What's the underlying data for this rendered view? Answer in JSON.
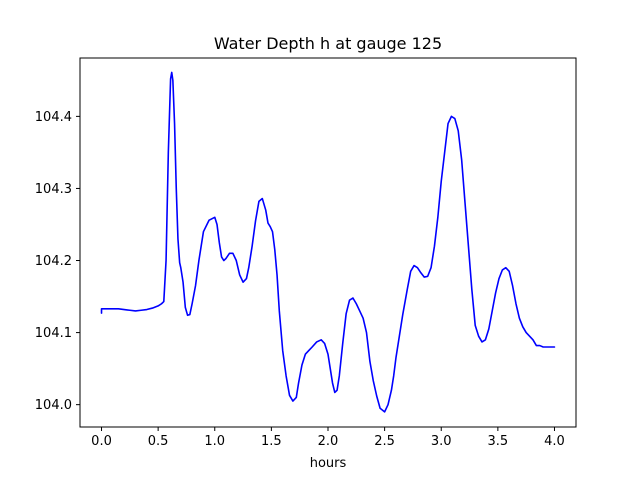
{
  "chart_data": {
    "type": "line",
    "title": "Water Depth h at gauge 125",
    "xlabel": "hours",
    "ylabel": "",
    "xlim": [
      -0.19,
      4.19
    ],
    "ylim": [
      103.969,
      104.481
    ],
    "grid": false,
    "x_ticks": [
      0.0,
      0.5,
      1.0,
      1.5,
      2.0,
      2.5,
      3.0,
      3.5,
      4.0
    ],
    "x_tick_labels": [
      "0.0",
      "0.5",
      "1.0",
      "1.5",
      "2.0",
      "2.5",
      "3.0",
      "3.5",
      "4.0"
    ],
    "y_ticks": [
      104.0,
      104.1,
      104.2,
      104.3,
      104.4
    ],
    "y_tick_labels": [
      "104.0",
      "104.1",
      "104.2",
      "104.3",
      "104.4"
    ],
    "colors": {
      "series": "#0000ff",
      "frame": "#000000",
      "background": "#ffffff"
    },
    "series": [
      {
        "x": [
          0.0,
          0.0,
          0.05,
          0.1,
          0.15,
          0.2,
          0.25,
          0.3,
          0.35,
          0.4,
          0.45,
          0.5,
          0.53,
          0.55,
          0.57,
          0.59,
          0.61,
          0.62,
          0.63,
          0.645,
          0.66,
          0.675,
          0.69,
          0.7,
          0.72,
          0.74,
          0.76,
          0.78,
          0.8,
          0.83,
          0.86,
          0.9,
          0.95,
          1.0,
          1.02,
          1.04,
          1.06,
          1.08,
          1.1,
          1.13,
          1.16,
          1.19,
          1.22,
          1.25,
          1.28,
          1.3,
          1.33,
          1.36,
          1.39,
          1.42,
          1.45,
          1.47,
          1.49,
          1.51,
          1.53,
          1.55,
          1.57,
          1.6,
          1.63,
          1.66,
          1.69,
          1.72,
          1.74,
          1.77,
          1.8,
          1.83,
          1.86,
          1.9,
          1.94,
          1.97,
          2.0,
          2.02,
          2.04,
          2.06,
          2.08,
          2.1,
          2.13,
          2.16,
          2.19,
          2.22,
          2.25,
          2.28,
          2.31,
          2.34,
          2.37,
          2.4,
          2.43,
          2.46,
          2.5,
          2.53,
          2.56,
          2.58,
          2.6,
          2.63,
          2.66,
          2.7,
          2.73,
          2.76,
          2.79,
          2.82,
          2.85,
          2.88,
          2.91,
          2.94,
          2.97,
          3.0,
          3.03,
          3.06,
          3.09,
          3.12,
          3.15,
          3.18,
          3.21,
          3.24,
          3.27,
          3.3,
          3.33,
          3.36,
          3.39,
          3.42,
          3.45,
          3.48,
          3.51,
          3.54,
          3.57,
          3.6,
          3.63,
          3.66,
          3.69,
          3.72,
          3.75,
          3.78,
          3.81,
          3.84,
          3.87,
          3.9,
          3.93,
          3.96,
          4.0
        ],
        "y": [
          104.127,
          104.133,
          104.133,
          104.133,
          104.133,
          104.132,
          104.131,
          104.13,
          104.131,
          104.132,
          104.134,
          104.137,
          104.14,
          104.143,
          104.2,
          104.35,
          104.452,
          104.461,
          104.45,
          104.39,
          104.3,
          104.23,
          104.197,
          104.19,
          104.17,
          104.135,
          104.124,
          104.125,
          104.14,
          104.165,
          104.2,
          104.24,
          104.256,
          104.26,
          104.25,
          104.225,
          104.205,
          104.2,
          104.203,
          104.21,
          104.21,
          104.2,
          104.18,
          104.17,
          104.175,
          104.19,
          104.22,
          104.255,
          104.282,
          104.286,
          104.27,
          104.252,
          104.247,
          104.24,
          104.215,
          104.18,
          104.13,
          104.075,
          104.04,
          104.013,
          104.005,
          104.01,
          104.03,
          104.055,
          104.07,
          104.075,
          104.08,
          104.087,
          104.09,
          104.085,
          104.07,
          104.05,
          104.03,
          104.017,
          104.02,
          104.04,
          104.085,
          104.126,
          104.145,
          104.148,
          104.14,
          104.13,
          104.12,
          104.1,
          104.06,
          104.033,
          104.012,
          103.995,
          103.99,
          104.0,
          104.02,
          104.04,
          104.065,
          104.095,
          104.125,
          104.16,
          104.185,
          104.193,
          104.19,
          104.183,
          104.177,
          104.178,
          104.19,
          104.22,
          104.26,
          104.31,
          104.35,
          104.39,
          104.4,
          104.397,
          104.38,
          104.34,
          104.28,
          104.22,
          104.16,
          104.11,
          104.095,
          104.087,
          104.09,
          104.105,
          104.13,
          104.155,
          104.175,
          104.187,
          104.19,
          104.185,
          104.165,
          104.14,
          104.12,
          104.108,
          104.1,
          104.095,
          104.09,
          104.082,
          104.082,
          104.08,
          104.08,
          104.08,
          104.08
        ]
      }
    ]
  }
}
